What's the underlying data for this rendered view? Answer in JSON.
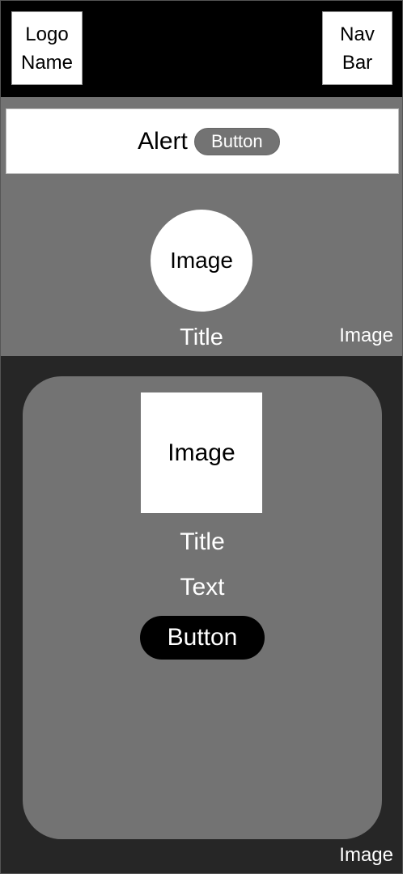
{
  "header": {
    "logo_label": "Logo\nName",
    "nav_label": "Nav\nBar"
  },
  "alert": {
    "text": "Alert",
    "button_label": "Button"
  },
  "hero": {
    "image_label": "Image",
    "title": "Title",
    "background_label": "Image"
  },
  "card": {
    "image_label": "Image",
    "title": "Title",
    "text": "Text",
    "button_label": "Button"
  },
  "section": {
    "background_label": "Image"
  }
}
